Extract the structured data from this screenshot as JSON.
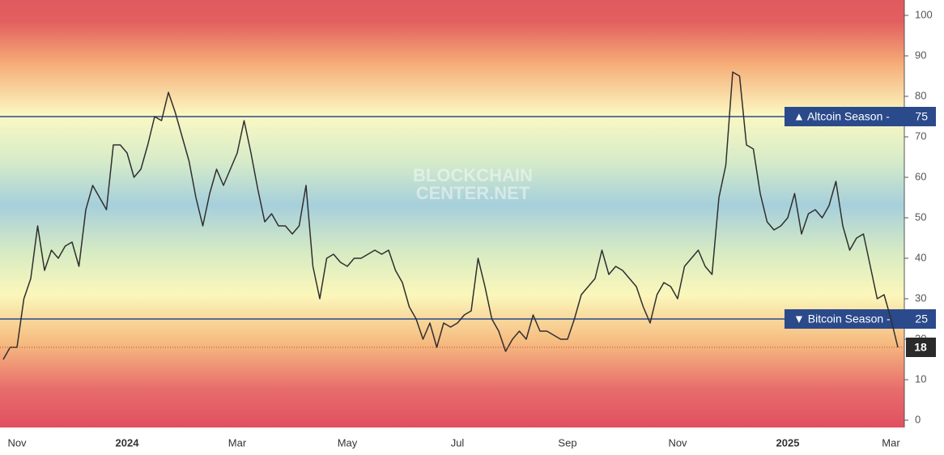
{
  "chart_data": {
    "type": "line",
    "watermark": [
      "BLOCKCHAIN",
      "CENTER.NET"
    ],
    "categories": [
      null,
      null,
      "Nov",
      null,
      null,
      null,
      null,
      null,
      null,
      null,
      null,
      null,
      null,
      null,
      null,
      null,
      null,
      null,
      "2024",
      null,
      null,
      null,
      null,
      null,
      null,
      null,
      null,
      null,
      null,
      null,
      null,
      null,
      null,
      null,
      "Mar",
      null,
      null,
      null,
      null,
      null,
      null,
      null,
      null,
      null,
      null,
      null,
      null,
      null,
      null,
      null,
      "May",
      null,
      null,
      null,
      null,
      null,
      null,
      null,
      null,
      null,
      null,
      null,
      null,
      null,
      null,
      null,
      "Jul",
      null,
      null,
      null,
      null,
      null,
      null,
      null,
      null,
      null,
      null,
      null,
      null,
      null,
      null,
      null,
      "Sep",
      null,
      null,
      null,
      null,
      null,
      null,
      null,
      null,
      null,
      null,
      null,
      null,
      null,
      null,
      null,
      "Nov",
      null,
      null,
      null,
      null,
      null,
      null,
      null,
      null,
      null,
      null,
      null,
      null,
      null,
      null,
      null,
      "2025",
      null,
      null,
      null,
      null,
      null,
      null,
      null,
      null,
      null,
      null,
      null,
      null,
      null,
      null,
      "Mar",
      null
    ],
    "values": [
      15,
      18,
      18,
      30,
      35,
      48,
      37,
      42,
      40,
      43,
      44,
      38,
      52,
      58,
      55,
      52,
      68,
      68,
      66,
      60,
      62,
      68,
      75,
      74,
      81,
      76,
      70,
      64,
      55,
      48,
      56,
      62,
      58,
      62,
      66,
      74,
      66,
      57,
      49,
      51,
      48,
      48,
      46,
      48,
      58,
      38,
      30,
      40,
      41,
      39,
      38,
      40,
      40,
      41,
      42,
      41,
      42,
      37,
      34,
      28,
      25,
      20,
      24,
      18,
      24,
      23,
      24,
      26,
      27,
      40,
      33,
      25,
      22,
      17,
      20,
      22,
      20,
      26,
      22,
      22,
      21,
      20,
      20,
      25,
      31,
      33,
      35,
      42,
      36,
      38,
      37,
      35,
      33,
      28,
      24,
      31,
      34,
      33,
      30,
      38,
      40,
      42,
      38,
      36,
      55,
      63,
      86,
      85,
      68,
      67,
      56,
      49,
      47,
      48,
      50,
      56,
      46,
      51,
      52,
      50,
      53,
      59,
      48,
      42,
      45,
      46,
      38,
      30,
      31,
      25,
      18
    ],
    "color": "#2f2f2f",
    "ylim": [
      -1.8,
      103.8
    ],
    "yticks": [
      0,
      10,
      20,
      30,
      40,
      50,
      60,
      70,
      80,
      90,
      100
    ],
    "grid": false,
    "reference_lines": [
      {
        "label": "▲ Altcoin Season -",
        "value": 75,
        "color": "#2b4a8b"
      },
      {
        "label": "▼ Bitcoin Season -",
        "value": 25,
        "color": "#2b4a8b"
      }
    ]
  }
}
